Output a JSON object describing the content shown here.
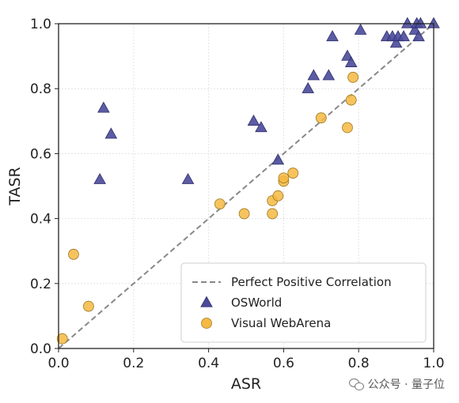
{
  "chart_data": {
    "type": "scatter",
    "xlabel": "ASR",
    "ylabel": "TASR",
    "xlim": [
      0.0,
      1.0
    ],
    "ylim": [
      0.0,
      1.0
    ],
    "xticks": [
      "0.0",
      "0.2",
      "0.4",
      "0.6",
      "0.8",
      "1.0"
    ],
    "yticks": [
      "0.0",
      "0.2",
      "0.4",
      "0.6",
      "0.8",
      "1.0"
    ],
    "grid": true,
    "legend_position": "lower-right",
    "reference_line": {
      "name": "Perfect Positive Correlation",
      "from": [
        0.0,
        0.0
      ],
      "to": [
        1.0,
        1.0
      ],
      "style": "dashed",
      "color": "#888888"
    },
    "series": [
      {
        "name": "OSWorld",
        "marker": "triangle",
        "color": "#4a4a9a",
        "points": [
          [
            0.11,
            0.52
          ],
          [
            0.12,
            0.74
          ],
          [
            0.14,
            0.66
          ],
          [
            0.345,
            0.52
          ],
          [
            0.52,
            0.7
          ],
          [
            0.54,
            0.68
          ],
          [
            0.585,
            0.58
          ],
          [
            0.665,
            0.8
          ],
          [
            0.68,
            0.84
          ],
          [
            0.72,
            0.84
          ],
          [
            0.73,
            0.96
          ],
          [
            0.77,
            0.9
          ],
          [
            0.78,
            0.88
          ],
          [
            0.805,
            0.98
          ],
          [
            0.875,
            0.96
          ],
          [
            0.89,
            0.96
          ],
          [
            0.9,
            0.94
          ],
          [
            0.905,
            0.96
          ],
          [
            0.92,
            0.96
          ],
          [
            0.93,
            1.0
          ],
          [
            0.95,
            0.98
          ],
          [
            0.955,
            1.0
          ],
          [
            0.96,
            0.96
          ],
          [
            0.965,
            1.0
          ],
          [
            1.0,
            1.0
          ]
        ]
      },
      {
        "name": "Visual WebArena",
        "marker": "circle",
        "color": "#f5b942",
        "points": [
          [
            0.01,
            0.03
          ],
          [
            0.04,
            0.29
          ],
          [
            0.08,
            0.13
          ],
          [
            0.43,
            0.445
          ],
          [
            0.495,
            0.415
          ],
          [
            0.57,
            0.415
          ],
          [
            0.57,
            0.455
          ],
          [
            0.585,
            0.47
          ],
          [
            0.6,
            0.515
          ],
          [
            0.6,
            0.525
          ],
          [
            0.625,
            0.54
          ],
          [
            0.7,
            0.71
          ],
          [
            0.77,
            0.68
          ],
          [
            0.78,
            0.765
          ],
          [
            0.785,
            0.835
          ]
        ]
      }
    ]
  },
  "watermark": {
    "text": "公众号 · 量子位"
  }
}
